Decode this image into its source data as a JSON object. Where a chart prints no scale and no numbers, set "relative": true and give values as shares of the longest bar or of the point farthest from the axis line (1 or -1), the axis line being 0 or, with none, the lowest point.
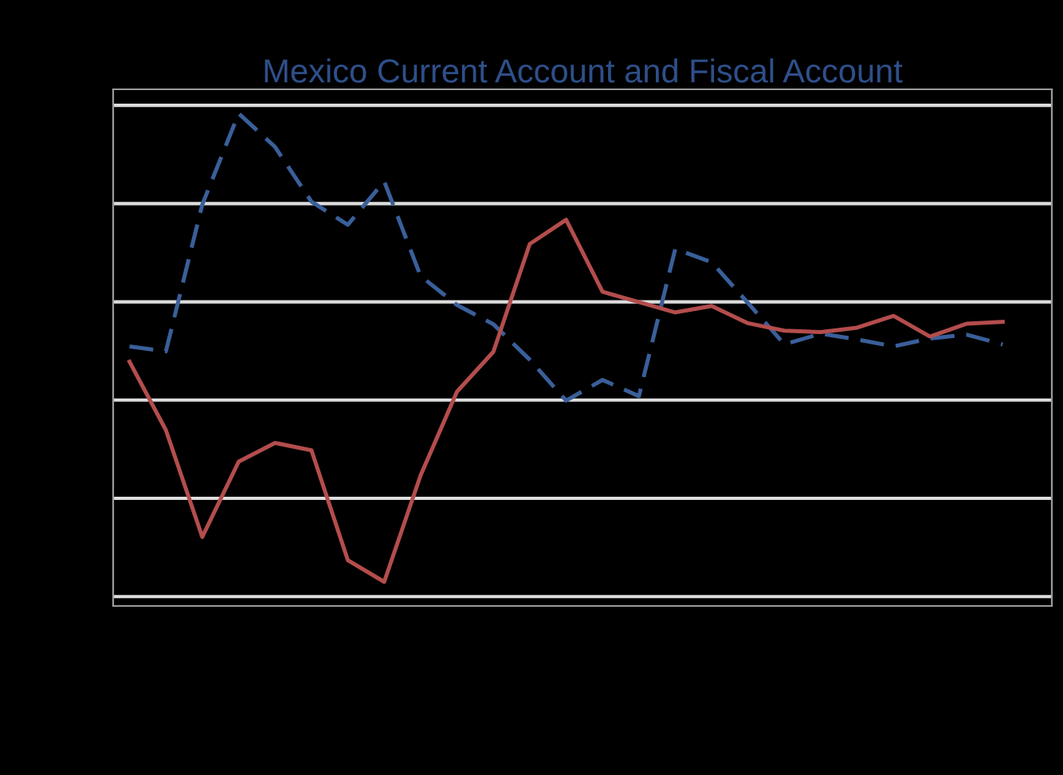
{
  "chart_data": {
    "type": "line",
    "title": "Mexico Current Account and Fiscal Account",
    "relative": true,
    "grid": "y",
    "categories": [
      null,
      null,
      null,
      null,
      null,
      null,
      null,
      null,
      null,
      null,
      null,
      null,
      null,
      null,
      null,
      null,
      null,
      null,
      null,
      null,
      null,
      null,
      null,
      null,
      null
    ],
    "series": [
      {
        "color": "#3a5f9a",
        "line_style": "dashed",
        "values": [
          0.527,
          0.517,
          0.815,
          1,
          0.932,
          0.821,
          0.774,
          0.862,
          0.67,
          0.611,
          0.572,
          0.5,
          0.417,
          0.459,
          0.426,
          0.725,
          0.698,
          0.615,
          0.531,
          0.553,
          0.541,
          0.527,
          0.543,
          0.551,
          0.531
        ]
      },
      {
        "color": "#b44d4d",
        "line_style": "solid",
        "values": [
          0.496,
          0.357,
          0.14,
          0.293,
          0.331,
          0.316,
          0.093,
          0.049,
          0.265,
          0.435,
          0.516,
          0.735,
          0.784,
          0.638,
          0.617,
          0.596,
          0.609,
          0.574,
          0.559,
          0.556,
          0.565,
          0.589,
          0.547,
          0.573,
          0.577
        ]
      }
    ]
  }
}
